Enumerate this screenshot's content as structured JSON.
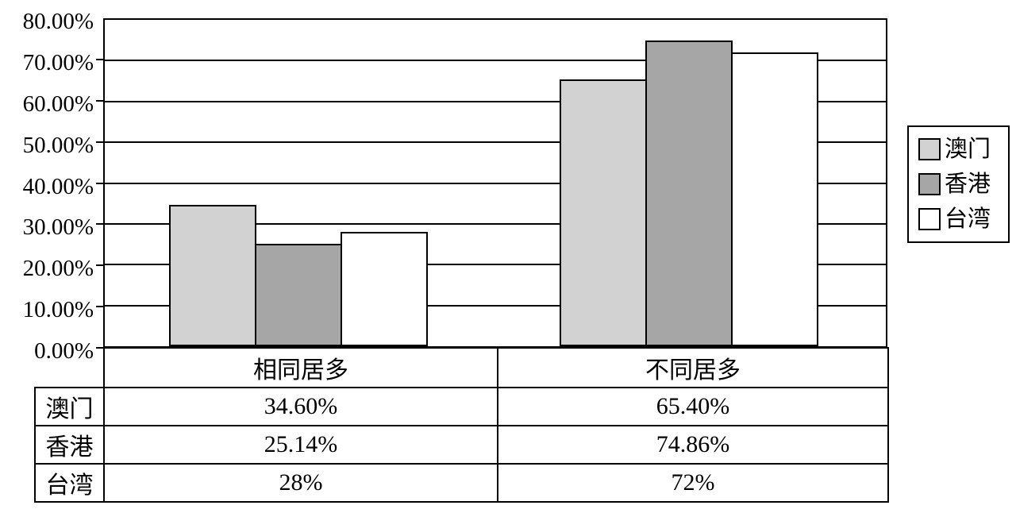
{
  "chart_data": {
    "type": "bar",
    "categories": [
      "相同居多",
      "不同居多"
    ],
    "series": [
      {
        "name": "澳门",
        "color": "#d2d2d2",
        "values": [
          34.6,
          65.4
        ]
      },
      {
        "name": "香港",
        "color": "#a6a6a6",
        "values": [
          25.14,
          74.86
        ]
      },
      {
        "name": "台湾",
        "color": "#ffffff",
        "values": [
          28,
          72
        ]
      }
    ],
    "ylim": [
      0,
      80
    ],
    "ytick_step": 10,
    "ytick_labels": [
      "80.00%",
      "70.00%",
      "60.00%",
      "50.00%",
      "40.00%",
      "30.00%",
      "20.00%",
      "10.00%",
      "0.00%"
    ],
    "grid": true,
    "legend_position": "right",
    "bar_border_color": "#000000",
    "gridline_color": "#000000"
  },
  "table": {
    "column_headers": [
      "相同居多",
      "不同居多"
    ],
    "row_headers": [
      "澳门",
      "香港",
      "台湾"
    ],
    "rows": [
      [
        "34.60%",
        "65.40%"
      ],
      [
        "25.14%",
        "74.86%"
      ],
      [
        "28%",
        "72%"
      ]
    ]
  },
  "legend": {
    "items": [
      {
        "label": "澳门",
        "color": "#d2d2d2"
      },
      {
        "label": "香港",
        "color": "#a6a6a6"
      },
      {
        "label": "台湾",
        "color": "#ffffff"
      }
    ]
  }
}
